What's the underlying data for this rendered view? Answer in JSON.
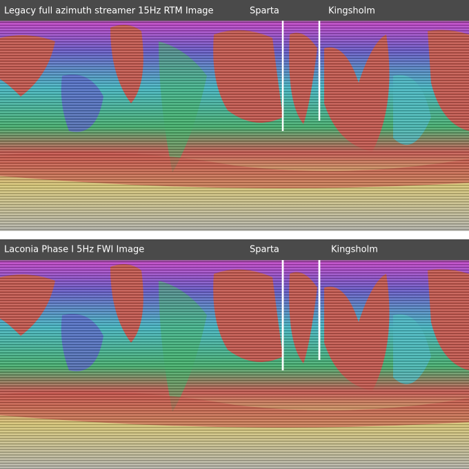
{
  "panels": [
    {
      "title": "Legacy full azimuth streamer 15Hz RTM Image",
      "wells": [
        "Sparta",
        "Kingsholm"
      ]
    },
    {
      "title": "Laconia Phase I 5Hz FWI Image",
      "wells": [
        "Sparta",
        "Kingsholm"
      ]
    }
  ]
}
